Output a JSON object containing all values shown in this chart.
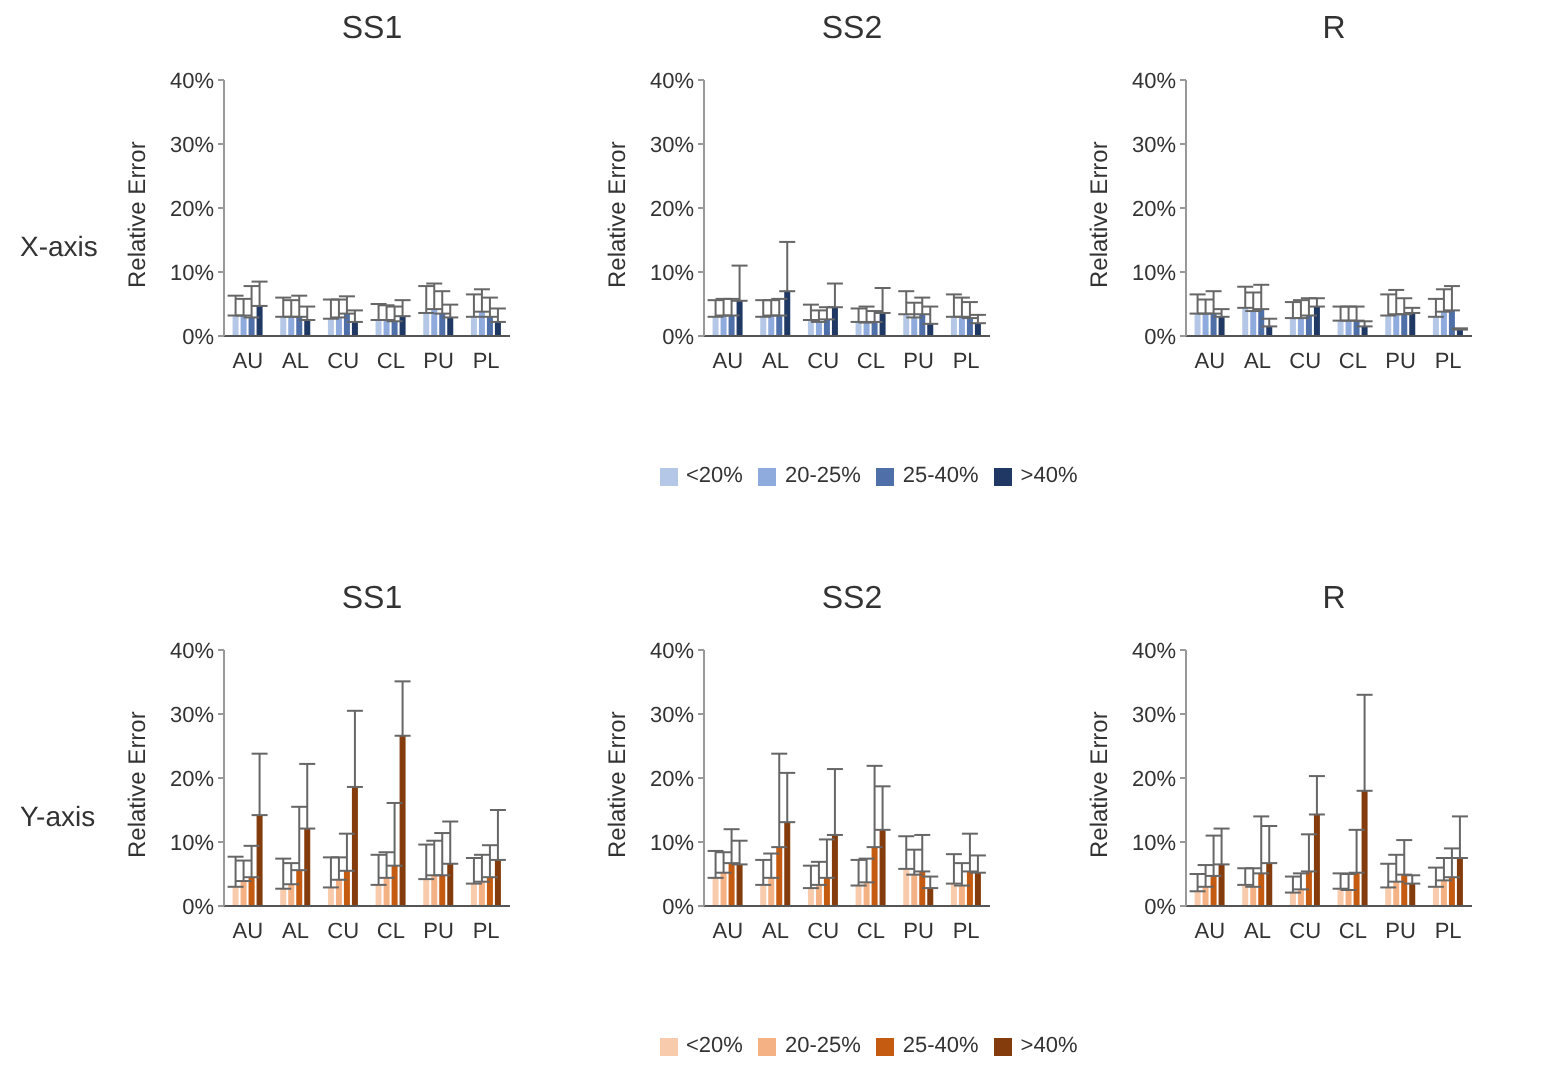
{
  "chart_data": [
    {
      "type": "bar",
      "title": "SS1",
      "ylabel": "Relative Error",
      "annotations": [
        "X-axis"
      ],
      "categories": [
        "AU",
        "AL",
        "CU",
        "CL",
        "PU",
        "PL"
      ],
      "ylim": [
        0,
        40
      ],
      "yticks": [
        {
          "value": 0,
          "label": "0%"
        },
        {
          "value": 10,
          "label": "10%"
        },
        {
          "value": 20,
          "label": "20%"
        },
        {
          "value": 30,
          "label": "30%"
        },
        {
          "value": 40,
          "label": "40%"
        }
      ],
      "series": [
        {
          "color": "#b4c7e7",
          "values": [
            3.2,
            3.0,
            2.7,
            2.5,
            3.6,
            3.0
          ],
          "errors": [
            [
              3.2,
              6.3
            ],
            [
              3.0,
              6.0
            ],
            [
              2.7,
              5.7
            ],
            [
              2.5,
              5.0
            ],
            [
              3.6,
              7.8
            ],
            [
              3.0,
              6.5
            ]
          ]
        },
        {
          "color": "#8faadc",
          "values": [
            3.2,
            3.0,
            2.9,
            2.5,
            4.2,
            3.8
          ],
          "errors": [
            [
              3.2,
              5.8
            ],
            [
              3.0,
              5.6
            ],
            [
              2.9,
              5.7
            ],
            [
              2.5,
              4.8
            ],
            [
              4.2,
              8.2
            ],
            [
              3.8,
              7.3
            ]
          ]
        },
        {
          "color": "#4f6fa8",
          "values": [
            2.9,
            3.0,
            3.5,
            2.3,
            3.5,
            3.0
          ],
          "errors": [
            [
              2.9,
              7.8
            ],
            [
              3.0,
              6.3
            ],
            [
              3.5,
              6.2
            ],
            [
              2.3,
              4.6
            ],
            [
              3.5,
              7.0
            ],
            [
              3.0,
              6.0
            ]
          ]
        },
        {
          "color": "#1f3864",
          "values": [
            4.7,
            2.5,
            2.2,
            3.1,
            2.9,
            2.2
          ],
          "errors": [
            [
              4.7,
              8.5
            ],
            [
              2.5,
              4.6
            ],
            [
              2.2,
              4.0
            ],
            [
              3.1,
              5.6
            ],
            [
              2.9,
              4.9
            ],
            [
              2.2,
              4.3
            ]
          ]
        }
      ]
    },
    {
      "type": "bar",
      "title": "SS2",
      "ylabel": "Relative Error",
      "legend": "bottom",
      "categories": [
        "AU",
        "AL",
        "CU",
        "CL",
        "PU",
        "PL"
      ],
      "ylim": [
        0,
        40
      ],
      "yticks": [
        {
          "value": 0,
          "label": "0%"
        },
        {
          "value": 10,
          "label": "10%"
        },
        {
          "value": 20,
          "label": "20%"
        },
        {
          "value": 30,
          "label": "30%"
        },
        {
          "value": 40,
          "label": "40%"
        }
      ],
      "series": [
        {
          "name": "<20%",
          "color": "#b4c7e7",
          "values": [
            3.0,
            3.0,
            2.5,
            2.2,
            3.4,
            3.0
          ],
          "errors": [
            [
              3.0,
              5.6
            ],
            [
              3.0,
              5.6
            ],
            [
              2.5,
              4.9
            ],
            [
              2.2,
              4.3
            ],
            [
              3.4,
              7.0
            ],
            [
              3.0,
              6.5
            ]
          ]
        },
        {
          "name": "20-25%",
          "color": "#8faadc",
          "values": [
            3.2,
            3.2,
            2.2,
            2.1,
            2.9,
            3.0
          ],
          "errors": [
            [
              3.2,
              5.8
            ],
            [
              3.2,
              5.6
            ],
            [
              2.2,
              4.0
            ],
            [
              2.1,
              4.6
            ],
            [
              2.9,
              5.2
            ],
            [
              3.0,
              6.0
            ]
          ]
        },
        {
          "name": "25-40%",
          "color": "#4f6fa8",
          "values": [
            3.2,
            3.2,
            2.6,
            2.2,
            3.4,
            2.8
          ],
          "errors": [
            [
              3.2,
              5.8
            ],
            [
              3.2,
              5.8
            ],
            [
              2.6,
              4.5
            ],
            [
              2.2,
              3.9
            ],
            [
              3.4,
              6.0
            ],
            [
              2.8,
              5.3
            ]
          ]
        },
        {
          "name": ">40%",
          "color": "#1f3864",
          "values": [
            5.5,
            7.0,
            4.5,
            3.6,
            1.9,
            2.0
          ],
          "errors": [
            [
              5.5,
              11.0
            ],
            [
              7.0,
              14.7
            ],
            [
              4.5,
              8.2
            ],
            [
              3.6,
              7.5
            ],
            [
              1.9,
              4.6
            ],
            [
              2.0,
              3.3
            ]
          ]
        }
      ]
    },
    {
      "type": "bar",
      "title": "R",
      "ylabel": "Relative Error",
      "categories": [
        "AU",
        "AL",
        "CU",
        "CL",
        "PU",
        "PL"
      ],
      "ylim": [
        0,
        40
      ],
      "yticks": [
        {
          "value": 0,
          "label": "0%"
        },
        {
          "value": 10,
          "label": "10%"
        },
        {
          "value": 20,
          "label": "20%"
        },
        {
          "value": 30,
          "label": "30%"
        },
        {
          "value": 40,
          "label": "40%"
        }
      ],
      "series": [
        {
          "color": "#b4c7e7",
          "values": [
            3.5,
            4.4,
            2.8,
            2.4,
            3.2,
            3.0
          ],
          "errors": [
            [
              3.5,
              6.5
            ],
            [
              4.4,
              7.7
            ],
            [
              2.8,
              5.3
            ],
            [
              2.4,
              4.6
            ],
            [
              3.2,
              6.5
            ],
            [
              3.0,
              5.8
            ]
          ]
        },
        {
          "color": "#8faadc",
          "values": [
            3.5,
            3.9,
            2.8,
            2.4,
            3.4,
            3.8
          ],
          "errors": [
            [
              3.5,
              5.7
            ],
            [
              3.9,
              6.8
            ],
            [
              2.8,
              5.6
            ],
            [
              2.4,
              4.6
            ],
            [
              3.4,
              7.2
            ],
            [
              3.8,
              7.3
            ]
          ]
        },
        {
          "color": "#4f6fa8",
          "values": [
            3.5,
            4.2,
            3.2,
            2.4,
            3.4,
            4.0
          ],
          "errors": [
            [
              3.5,
              7.0
            ],
            [
              4.2,
              8.0
            ],
            [
              3.2,
              5.9
            ],
            [
              2.4,
              4.6
            ],
            [
              3.4,
              5.9
            ],
            [
              4.0,
              7.8
            ]
          ]
        },
        {
          "color": "#1f3864",
          "values": [
            3.0,
            1.5,
            4.6,
            1.5,
            3.6,
            1.0
          ],
          "errors": [
            [
              3.0,
              4.2
            ],
            [
              1.5,
              2.7
            ],
            [
              4.6,
              5.9
            ],
            [
              1.5,
              2.3
            ],
            [
              3.6,
              4.4
            ],
            [
              1.0,
              1.2
            ]
          ]
        }
      ]
    },
    {
      "type": "bar",
      "title": "SS1",
      "ylabel": "Relative Error",
      "annotations": [
        "Y-axis"
      ],
      "categories": [
        "AU",
        "AL",
        "CU",
        "CL",
        "PU",
        "PL"
      ],
      "ylim": [
        0,
        40
      ],
      "yticks": [
        {
          "value": 0,
          "label": "0%"
        },
        {
          "value": 10,
          "label": "10%"
        },
        {
          "value": 20,
          "label": "20%"
        },
        {
          "value": 30,
          "label": "30%"
        },
        {
          "value": 40,
          "label": "40%"
        }
      ],
      "series": [
        {
          "color": "#f8cbad",
          "values": [
            3.0,
            2.7,
            2.9,
            3.3,
            4.2,
            3.5
          ],
          "errors": [
            [
              3.0,
              7.7
            ],
            [
              2.7,
              7.4
            ],
            [
              2.9,
              7.6
            ],
            [
              3.3,
              8.0
            ],
            [
              4.2,
              9.6
            ],
            [
              3.5,
              7.5
            ]
          ]
        },
        {
          "color": "#f4b183",
          "values": [
            3.9,
            3.4,
            4.1,
            4.4,
            4.8,
            3.8
          ],
          "errors": [
            [
              3.9,
              7.1
            ],
            [
              3.4,
              6.7
            ],
            [
              4.1,
              7.6
            ],
            [
              4.4,
              8.4
            ],
            [
              4.8,
              10.2
            ],
            [
              3.8,
              8.0
            ]
          ]
        },
        {
          "color": "#c55a11",
          "values": [
            4.5,
            5.6,
            5.5,
            6.3,
            4.8,
            4.5
          ],
          "errors": [
            [
              4.5,
              9.4
            ],
            [
              5.6,
              15.5
            ],
            [
              5.5,
              11.3
            ],
            [
              6.3,
              16.1
            ],
            [
              4.8,
              11.4
            ],
            [
              4.5,
              9.5
            ]
          ]
        },
        {
          "color": "#843c0c",
          "values": [
            14.2,
            12.1,
            18.6,
            26.6,
            6.6,
            7.2
          ],
          "errors": [
            [
              14.2,
              23.8
            ],
            [
              12.1,
              22.2
            ],
            [
              18.6,
              30.5
            ],
            [
              26.6,
              35.1
            ],
            [
              6.6,
              13.2
            ],
            [
              7.2,
              15.0
            ]
          ]
        }
      ]
    },
    {
      "type": "bar",
      "title": "SS2",
      "ylabel": "Relative Error",
      "legend": "bottom",
      "categories": [
        "AU",
        "AL",
        "CU",
        "CL",
        "PU",
        "PL"
      ],
      "ylim": [
        0,
        40
      ],
      "yticks": [
        {
          "value": 0,
          "label": "0%"
        },
        {
          "value": 10,
          "label": "10%"
        },
        {
          "value": 20,
          "label": "20%"
        },
        {
          "value": 30,
          "label": "30%"
        },
        {
          "value": 40,
          "label": "40%"
        }
      ],
      "series": [
        {
          "name": "<20%",
          "color": "#f8cbad",
          "values": [
            4.4,
            3.3,
            2.8,
            3.2,
            5.8,
            3.5
          ],
          "errors": [
            [
              4.4,
              8.6
            ],
            [
              3.3,
              7.2
            ],
            [
              2.8,
              6.3
            ],
            [
              3.2,
              7.2
            ],
            [
              5.8,
              10.9
            ],
            [
              3.5,
              8.1
            ]
          ]
        },
        {
          "name": "20-25%",
          "color": "#f4b183",
          "values": [
            5.2,
            4.4,
            3.3,
            3.7,
            4.9,
            3.2
          ],
          "errors": [
            [
              5.2,
              8.4
            ],
            [
              4.4,
              8.2
            ],
            [
              3.3,
              6.9
            ],
            [
              3.7,
              7.4
            ],
            [
              4.9,
              8.8
            ],
            [
              3.2,
              6.7
            ]
          ]
        },
        {
          "name": "25-40%",
          "color": "#c55a11",
          "values": [
            6.7,
            9.2,
            4.4,
            9.2,
            5.4,
            5.4
          ],
          "errors": [
            [
              6.7,
              12.0
            ],
            [
              9.2,
              23.8
            ],
            [
              4.4,
              10.4
            ],
            [
              9.2,
              21.9
            ],
            [
              5.4,
              11.1
            ],
            [
              5.4,
              11.3
            ]
          ]
        },
        {
          "name": ">40%",
          "color": "#843c0c",
          "values": [
            6.5,
            13.1,
            11.1,
            11.9,
            2.8,
            5.2
          ],
          "errors": [
            [
              6.5,
              10.2
            ],
            [
              13.1,
              20.8
            ],
            [
              11.1,
              21.4
            ],
            [
              11.9,
              18.7
            ],
            [
              2.8,
              4.6
            ],
            [
              5.2,
              7.9
            ]
          ]
        }
      ]
    },
    {
      "type": "bar",
      "title": "R",
      "ylabel": "Relative Error",
      "categories": [
        "AU",
        "AL",
        "CU",
        "CL",
        "PU",
        "PL"
      ],
      "ylim": [
        0,
        40
      ],
      "yticks": [
        {
          "value": 0,
          "label": "0%"
        },
        {
          "value": 10,
          "label": "10%"
        },
        {
          "value": 20,
          "label": "20%"
        },
        {
          "value": 30,
          "label": "30%"
        },
        {
          "value": 40,
          "label": "40%"
        }
      ],
      "series": [
        {
          "color": "#f8cbad",
          "values": [
            2.3,
            3.3,
            2.1,
            2.7,
            2.9,
            3.0
          ],
          "errors": [
            [
              2.3,
              5.0
            ],
            [
              3.3,
              5.9
            ],
            [
              2.1,
              4.6
            ],
            [
              2.7,
              5.1
            ],
            [
              2.9,
              6.6
            ],
            [
              3.0,
              6.0
            ]
          ]
        },
        {
          "color": "#f4b183",
          "values": [
            3.0,
            3.0,
            2.6,
            2.5,
            3.8,
            4.0
          ],
          "errors": [
            [
              3.0,
              6.4
            ],
            [
              3.0,
              5.9
            ],
            [
              2.6,
              5.1
            ],
            [
              2.5,
              5.0
            ],
            [
              3.8,
              8.0
            ],
            [
              4.0,
              7.5
            ]
          ]
        },
        {
          "color": "#c55a11",
          "values": [
            4.7,
            5.1,
            5.4,
            5.2,
            4.9,
            4.5
          ],
          "errors": [
            [
              4.7,
              11.0
            ],
            [
              5.1,
              14.0
            ],
            [
              5.4,
              11.2
            ],
            [
              5.2,
              11.9
            ],
            [
              4.9,
              10.3
            ],
            [
              4.5,
              9.0
            ]
          ]
        },
        {
          "color": "#843c0c",
          "values": [
            6.5,
            6.7,
            14.3,
            18.0,
            3.5,
            7.5
          ],
          "errors": [
            [
              6.5,
              12.1
            ],
            [
              6.7,
              12.5
            ],
            [
              14.3,
              20.3
            ],
            [
              18.0,
              33.0
            ],
            [
              3.5,
              4.8
            ],
            [
              7.5,
              14.0
            ]
          ]
        }
      ]
    }
  ]
}
